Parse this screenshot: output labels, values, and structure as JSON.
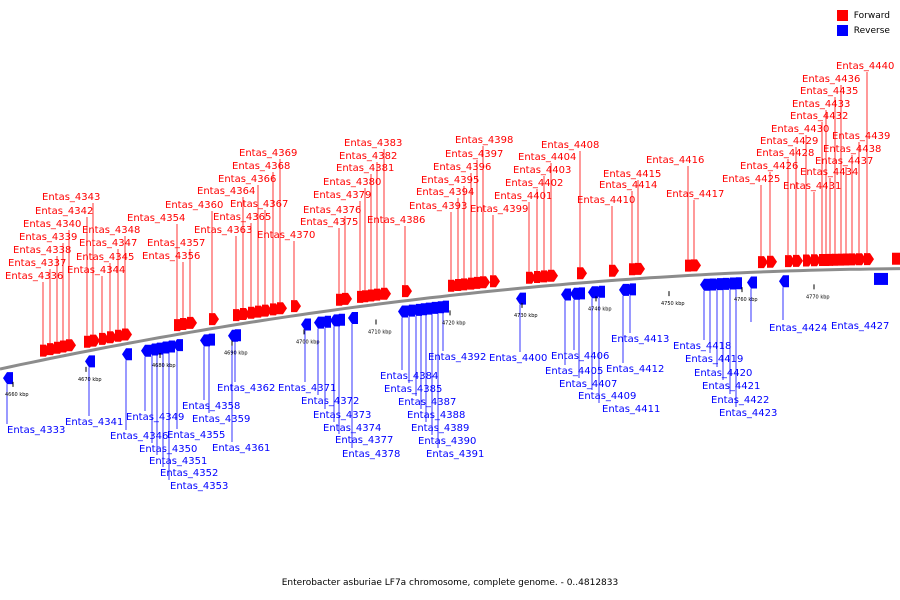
{
  "legend": [
    {
      "label": "Forward",
      "color": "#ff0000"
    },
    {
      "label": "Reverse",
      "color": "#0000ff"
    }
  ],
  "caption": "Enterobacter asburiae LF7a chromosome, complete genome. - 0..4812833",
  "axis_ticks": [
    "4660 kbp",
    "4670 kbp",
    "4680 kbp",
    "4690 kbp",
    "4700 kbp",
    "4710 kbp",
    "4720 kbp",
    "4730 kbp",
    "4740 kbp",
    "4750 kbp",
    "4760 kbp",
    "4770 kbp"
  ],
  "forward_genes": [
    "Entas_4336",
    "Entas_4337",
    "Entas_4338",
    "Entas_4339",
    "Entas_4340",
    "Entas_4342",
    "Entas_4343",
    "Entas_4344",
    "Entas_4345",
    "Entas_4347",
    "Entas_4348",
    "Entas_4354",
    "Entas_4356",
    "Entas_4357",
    "Entas_4360",
    "Entas_4363",
    "Entas_4364",
    "Entas_4365",
    "Entas_4366",
    "Entas_4367",
    "Entas_4368",
    "Entas_4369",
    "Entas_4370",
    "Entas_4375",
    "Entas_4376",
    "Entas_4379",
    "Entas_4380",
    "Entas_4381",
    "Entas_4382",
    "Entas_4383",
    "Entas_4386",
    "Entas_4393",
    "Entas_4394",
    "Entas_4395",
    "Entas_4396",
    "Entas_4397",
    "Entas_4398",
    "Entas_4399",
    "Entas_4401",
    "Entas_4402",
    "Entas_4403",
    "Entas_4404",
    "Entas_4408",
    "Entas_4410",
    "Entas_4414",
    "Entas_4415",
    "Entas_4416",
    "Entas_4417",
    "Entas_4425",
    "Entas_4426",
    "Entas_4428",
    "Entas_4429",
    "Entas_4430",
    "Entas_4431",
    "Entas_4432",
    "Entas_4433",
    "Entas_4434",
    "Entas_4435",
    "Entas_4436",
    "Entas_4437",
    "Entas_4438",
    "Entas_4439",
    "Entas_4440"
  ],
  "reverse_genes": [
    "Entas_4333",
    "Entas_4341",
    "Entas_4346",
    "Entas_4349",
    "Entas_4350",
    "Entas_4351",
    "Entas_4352",
    "Entas_4353",
    "Entas_4355",
    "Entas_4358",
    "Entas_4359",
    "Entas_4361",
    "Entas_4362",
    "Entas_4371",
    "Entas_4372",
    "Entas_4373",
    "Entas_4374",
    "Entas_4377",
    "Entas_4378",
    "Entas_4384",
    "Entas_4385",
    "Entas_4387",
    "Entas_4388",
    "Entas_4389",
    "Entas_4390",
    "Entas_4391",
    "Entas_4392",
    "Entas_4400",
    "Entas_4405",
    "Entas_4406",
    "Entas_4407",
    "Entas_4409",
    "Entas_4411",
    "Entas_4412",
    "Entas_4413",
    "Entas_4418",
    "Entas_4419",
    "Entas_4420",
    "Entas_4421",
    "Entas_4422",
    "Entas_4423",
    "Entas_4424",
    "Entas_4427"
  ]
}
